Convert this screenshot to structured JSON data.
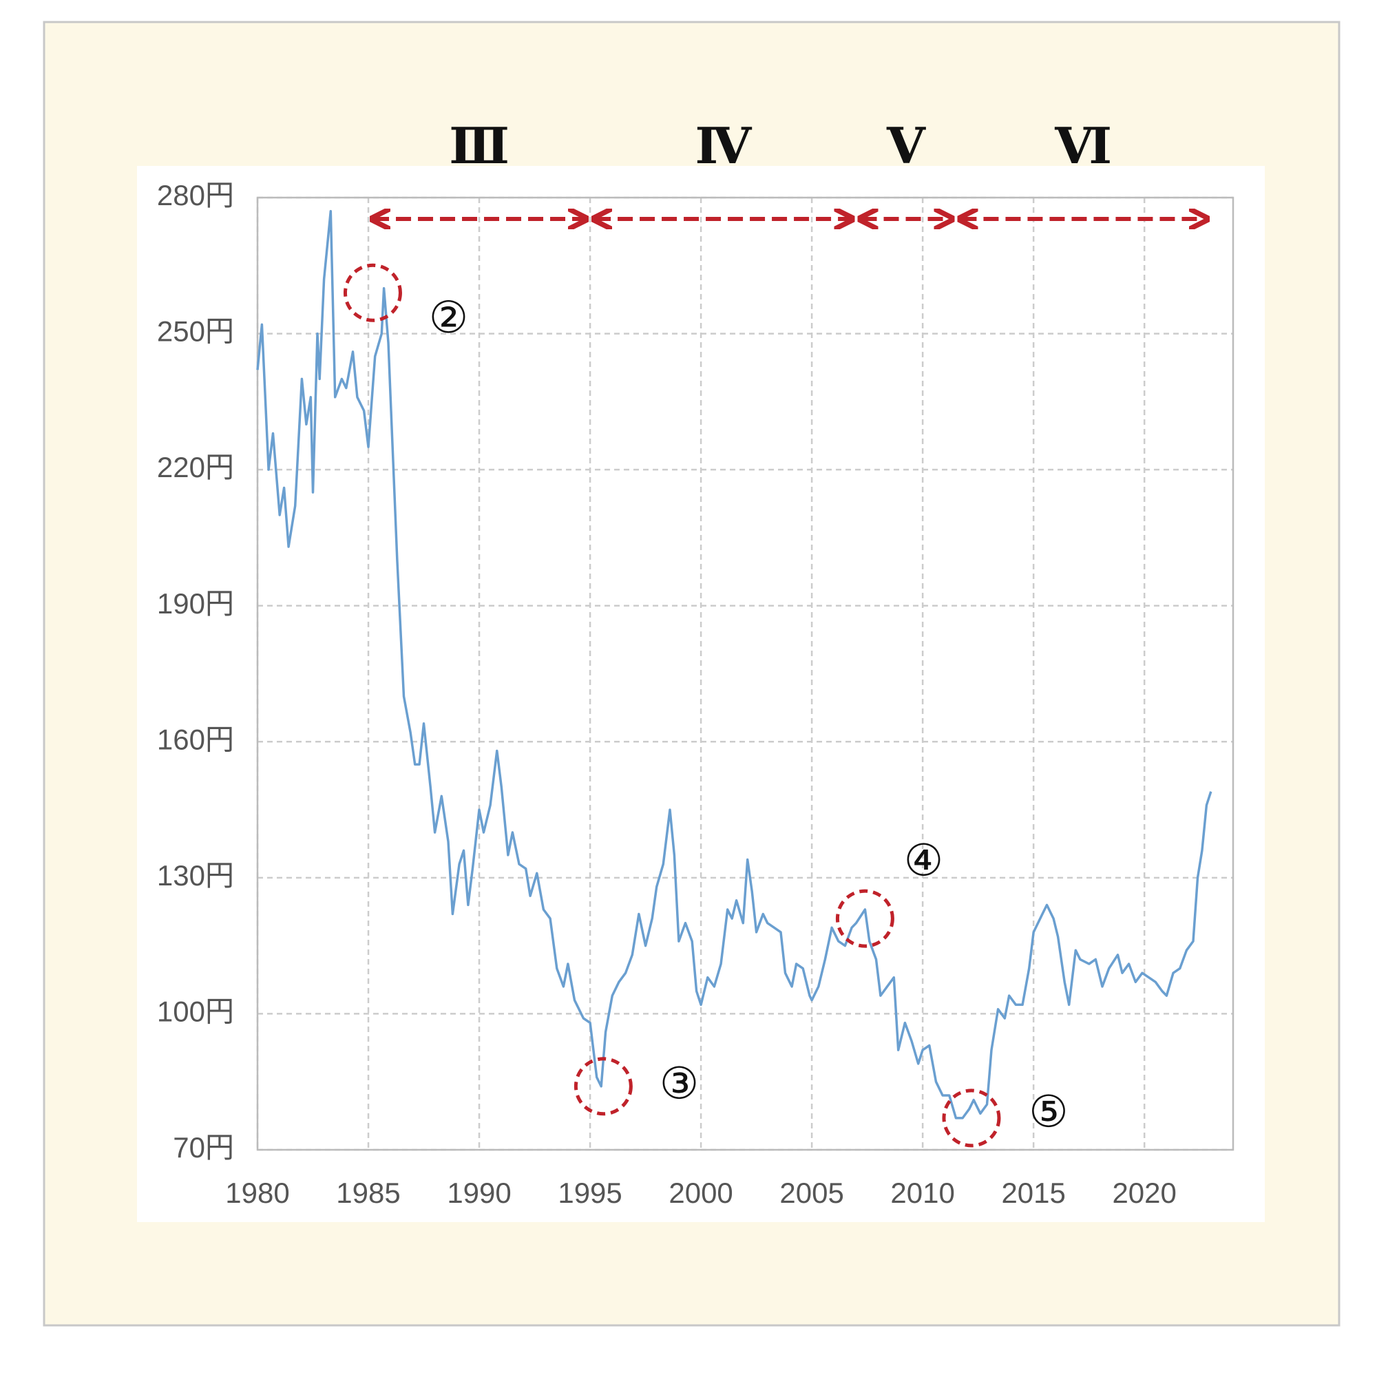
{
  "chart_data": {
    "type": "line",
    "x": [
      1980.0,
      1980.2,
      1980.5,
      1980.7,
      1981.0,
      1981.2,
      1981.4,
      1981.7,
      1982.0,
      1982.2,
      1982.4,
      1982.5,
      1982.7,
      1982.8,
      1983.0,
      1983.3,
      1983.5,
      1983.8,
      1984.0,
      1984.3,
      1984.5,
      1984.8,
      1985.0,
      1985.3,
      1985.6,
      1985.7,
      1985.9,
      1986.0,
      1986.3,
      1986.6,
      1986.9,
      1987.1,
      1987.3,
      1987.5,
      1987.8,
      1988.0,
      1988.3,
      1988.6,
      1988.8,
      1989.1,
      1989.3,
      1989.5,
      1989.7,
      1990.0,
      1990.2,
      1990.5,
      1990.8,
      1991.0,
      1991.3,
      1991.5,
      1991.8,
      1992.1,
      1992.3,
      1992.6,
      1992.9,
      1993.2,
      1993.5,
      1993.8,
      1994.0,
      1994.3,
      1994.7,
      1995.0,
      1995.3,
      1995.5,
      1995.7,
      1996.0,
      1996.3,
      1996.6,
      1996.9,
      1997.2,
      1997.5,
      1997.8,
      1998.0,
      1998.3,
      1998.6,
      1998.8,
      1999.0,
      1999.3,
      1999.6,
      1999.8,
      2000.0,
      2000.3,
      2000.6,
      2000.9,
      2001.2,
      2001.4,
      2001.6,
      2001.9,
      2002.1,
      2002.3,
      2002.5,
      2002.8,
      2003.0,
      2003.3,
      2003.6,
      2003.8,
      2004.1,
      2004.3,
      2004.6,
      2004.9,
      2005.0,
      2005.3,
      2005.6,
      2005.9,
      2006.2,
      2006.5,
      2006.8,
      2007.0,
      2007.4,
      2007.6,
      2007.9,
      2008.1,
      2008.4,
      2008.7,
      2008.9,
      2009.2,
      2009.5,
      2009.8,
      2010.0,
      2010.3,
      2010.6,
      2010.9,
      2011.2,
      2011.5,
      2011.8,
      2012.1,
      2012.3,
      2012.6,
      2012.9,
      2013.1,
      2013.4,
      2013.7,
      2013.9,
      2014.2,
      2014.5,
      2014.8,
      2015.0,
      2015.4,
      2015.6,
      2015.9,
      2016.1,
      2016.4,
      2016.6,
      2016.9,
      2017.1,
      2017.5,
      2017.8,
      2018.1,
      2018.4,
      2018.8,
      2019.0,
      2019.3,
      2019.6,
      2019.9,
      2020.2,
      2020.5,
      2020.8,
      2021.0,
      2021.3,
      2021.6,
      2021.9,
      2022.2,
      2022.4,
      2022.6,
      2022.8,
      2023.0
    ],
    "series": [
      {
        "color": "#6a9fd0",
        "values": [
          242,
          252,
          220,
          228,
          210,
          216,
          203,
          212,
          240,
          230,
          236,
          215,
          250,
          240,
          262,
          277,
          236,
          240,
          238,
          246,
          236,
          233,
          225,
          245,
          250,
          260,
          248,
          236,
          200,
          170,
          162,
          155,
          155,
          164,
          150,
          140,
          148,
          138,
          122,
          133,
          136,
          124,
          132,
          145,
          140,
          146,
          158,
          150,
          135,
          140,
          133,
          132,
          126,
          131,
          123,
          121,
          110,
          106,
          111,
          103,
          99,
          98,
          86,
          84,
          96,
          104,
          107,
          109,
          113,
          122,
          115,
          121,
          128,
          133,
          145,
          135,
          116,
          120,
          116,
          105,
          102,
          108,
          106,
          111,
          123,
          121,
          125,
          120,
          134,
          127,
          118,
          122,
          120,
          119,
          118,
          109,
          106,
          111,
          110,
          104,
          103,
          106,
          112,
          119,
          116,
          115,
          119,
          120,
          123,
          116,
          112,
          104,
          106,
          108,
          92,
          98,
          94,
          89,
          92,
          93,
          85,
          82,
          82,
          77,
          77,
          79,
          81,
          78,
          80,
          92,
          101,
          99,
          104,
          102,
          102,
          110,
          118,
          122,
          124,
          121,
          117,
          107,
          102,
          114,
          112,
          111,
          112,
          106,
          110,
          113,
          109,
          111,
          107,
          109,
          108,
          107,
          105,
          104,
          109,
          110,
          114,
          116,
          130,
          136,
          146,
          149
        ]
      }
    ],
    "xlim": [
      1980,
      2024
    ],
    "ylim": [
      70,
      280
    ],
    "xticks": [
      1980,
      1985,
      1990,
      1995,
      2000,
      2005,
      2010,
      2015,
      2020
    ],
    "yticks": [
      {
        "value": 70,
        "label": "70円"
      },
      {
        "value": 100,
        "label": "100円"
      },
      {
        "value": 130,
        "label": "130円"
      },
      {
        "value": 160,
        "label": "160円"
      },
      {
        "value": 190,
        "label": "190円"
      },
      {
        "value": 220,
        "label": "220円"
      },
      {
        "value": 250,
        "label": "250円"
      },
      {
        "value": 280,
        "label": "280円"
      }
    ],
    "grid": true,
    "periods": [
      {
        "label": "Ⅲ",
        "start": 1985,
        "end": 1995
      },
      {
        "label": "Ⅳ",
        "start": 1995,
        "end": 2007
      },
      {
        "label": "Ⅴ",
        "start": 2007,
        "end": 2011.5
      },
      {
        "label": "Ⅵ",
        "start": 2011.5,
        "end": 2023
      }
    ],
    "annotations": [
      {
        "label": "②",
        "x": 1985.2,
        "y": 259
      },
      {
        "label": "③",
        "x": 1995.6,
        "y": 84
      },
      {
        "label": "④",
        "x": 2007.4,
        "y": 121
      },
      {
        "label": "⑤",
        "x": 2012.2,
        "y": 77
      }
    ]
  }
}
